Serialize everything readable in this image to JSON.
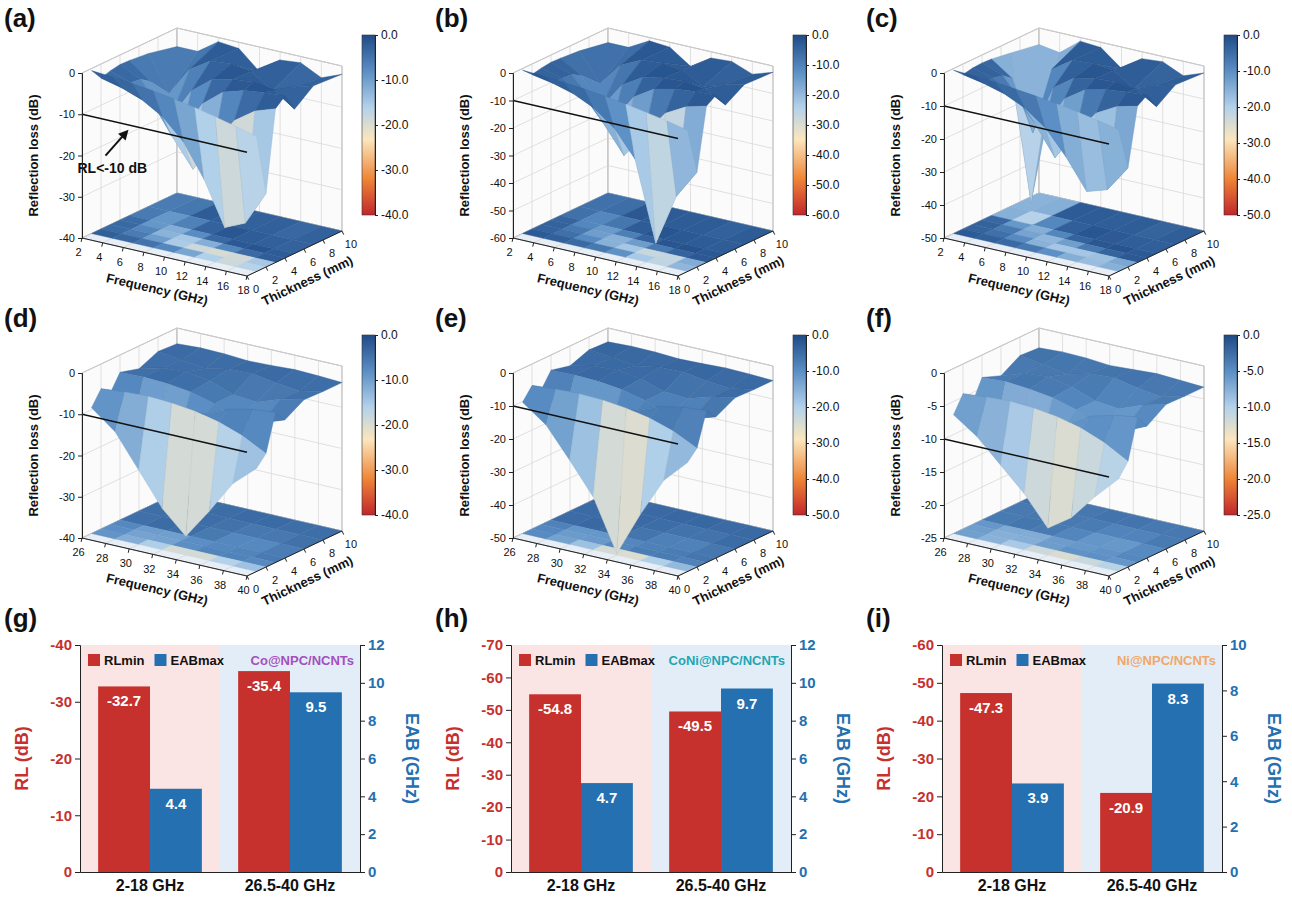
{
  "chart_data": [
    {
      "type": "surface",
      "panel": "(a)",
      "xlabel": "Frequency (GHz)",
      "ylabel": "Thickness (mm)",
      "zlabel": "Reflection loss (dB)",
      "x": [
        2,
        4,
        6,
        8,
        10,
        12,
        14,
        16,
        18
      ],
      "y": [
        1,
        2,
        3,
        4,
        5,
        7,
        10
      ],
      "z": [
        [
          -0.5,
          -0.9,
          -1.4,
          -2.0,
          -2.8,
          -3.7,
          -4.8,
          -6.0,
          -7.3
        ],
        [
          -3.4,
          -4.6,
          -6.4,
          -9.4,
          -14.3,
          -22.2,
          -32.7,
          -30.5,
          -22.2
        ],
        [
          -2.7,
          -4.4,
          -7.9,
          -15.3,
          -22.0,
          -15.3,
          -7.9,
          -4.4,
          -2.7
        ],
        [
          -2.3,
          -4.7,
          -11.1,
          -15.2,
          -7.2,
          -3.2,
          -1.7,
          -1.0,
          -0.7
        ],
        [
          -2.4,
          -6.3,
          -14.0,
          -6.3,
          -2.4,
          -1.2,
          -0.7,
          -1.5,
          -5.0
        ],
        [
          -2.9,
          -11.4,
          -4.4,
          -1.3,
          -0.8,
          -1.5,
          -5.0,
          -3.0,
          -1.5
        ],
        [
          -4.5,
          -4.5,
          -1.0,
          -1.5,
          -6.0,
          -2.0,
          -1.5,
          -4.0,
          -2.0
        ]
      ],
      "xlim": [
        2,
        18
      ],
      "xticks": [
        2,
        4,
        6,
        8,
        10,
        12,
        14,
        16,
        18
      ],
      "ylim": [
        0,
        10
      ],
      "yticks": [
        0,
        2,
        4,
        6,
        8,
        10
      ],
      "zlim": [
        -40,
        0
      ],
      "zticks": [
        0,
        -10,
        -20,
        -30,
        -40
      ],
      "colorbar": {
        "range": [
          -40,
          0
        ],
        "ticks": [
          {
            "value": 0,
            "label": "0.0"
          },
          {
            "value": -10,
            "label": "-10.0"
          },
          {
            "value": -20,
            "label": "-20.0"
          },
          {
            "value": -30,
            "label": "-30.0"
          },
          {
            "value": -40,
            "label": "-40.0"
          }
        ]
      },
      "threshold": -10,
      "annotation": "RL<-10 dB"
    },
    {
      "type": "surface",
      "panel": "(b)",
      "xlabel": "Frequency (GHz)",
      "ylabel": "Thickness (mm)",
      "zlabel": "Reflection loss (dB)",
      "x": [
        2,
        4,
        6,
        8,
        10,
        12,
        14,
        16,
        18
      ],
      "y": [
        1,
        2,
        3,
        4,
        5,
        7,
        10
      ],
      "z": [
        [
          -0.6,
          -1.0,
          -1.6,
          -2.3,
          -3.2,
          -4.3,
          -5.6,
          -7.0,
          -8.6
        ],
        [
          -3.8,
          -5.2,
          -7.3,
          -10.8,
          -16.5,
          -26.0,
          -54.8,
          -36.0,
          -25.5
        ],
        [
          -3.1,
          -5.1,
          -9.2,
          -18.0,
          -28.0,
          -18.5,
          -9.2,
          -5.1,
          -3.1
        ],
        [
          -2.6,
          -5.4,
          -13.0,
          -19.0,
          -8.4,
          -3.7,
          -2.0,
          -1.2,
          -0.8
        ],
        [
          -2.8,
          -7.3,
          -17.0,
          -7.3,
          -2.8,
          -1.4,
          -0.8,
          -1.8,
          -6.0
        ],
        [
          -3.4,
          -13.5,
          -5.1,
          -1.5,
          -0.9,
          -1.8,
          -6.0,
          -3.5,
          -1.8
        ],
        [
          -5.3,
          -5.3,
          -1.2,
          -1.8,
          -7.0,
          -2.3,
          -1.8,
          -4.7,
          -2.3
        ]
      ],
      "xlim": [
        2,
        18
      ],
      "xticks": [
        2,
        4,
        6,
        8,
        10,
        12,
        14,
        16,
        18
      ],
      "ylim": [
        0,
        10
      ],
      "yticks": [
        0,
        2,
        4,
        6,
        8,
        10
      ],
      "zlim": [
        -60,
        0
      ],
      "zticks": [
        0,
        -10,
        -20,
        -30,
        -40,
        -50,
        -60
      ],
      "colorbar": {
        "range": [
          -60,
          0
        ],
        "ticks": [
          {
            "value": 0,
            "label": "0.0"
          },
          {
            "value": -10,
            "label": "-10.0"
          },
          {
            "value": -20,
            "label": "-20.0"
          },
          {
            "value": -30,
            "label": "-30.0"
          },
          {
            "value": -40,
            "label": "-40.0"
          },
          {
            "value": -50,
            "label": "-50.0"
          },
          {
            "value": -60,
            "label": "-60.0"
          }
        ]
      },
      "threshold": -10
    },
    {
      "type": "surface",
      "panel": "(c)",
      "xlabel": "Frequency (GHz)",
      "ylabel": "Thickness (mm)",
      "zlabel": "Reflection loss (dB)",
      "x": [
        2,
        4,
        6,
        8,
        10,
        12,
        14,
        16,
        18
      ],
      "y": [
        1,
        2,
        3,
        4,
        5,
        7,
        10
      ],
      "z": [
        [
          -0.5,
          -0.8,
          -1.3,
          -1.9,
          -2.6,
          -3.5,
          -4.5,
          -5.7,
          -7.0
        ],
        [
          -3.2,
          -4.4,
          -6.1,
          -9.0,
          -13.6,
          -21.0,
          -30.0,
          -28.0,
          -20.0
        ],
        [
          -2.6,
          -4.2,
          -7.6,
          -14.8,
          -24.0,
          -15.0,
          -7.6,
          -4.2,
          -2.6
        ],
        [
          -2.4,
          -4.8,
          -12.0,
          -18.0,
          -7.5,
          -3.3,
          -1.8,
          -1.1,
          -0.7
        ],
        [
          -2.6,
          -7.0,
          -22.0,
          -7.0,
          -2.6,
          -1.3,
          -0.8,
          -1.6,
          -5.5
        ],
        [
          -3.5,
          -47.3,
          -5.5,
          -1.4,
          -0.9,
          -1.6,
          -5.5,
          -3.2,
          -1.6
        ],
        [
          -5.0,
          -6.0,
          -1.1,
          -1.6,
          -6.5,
          -2.1,
          -1.6,
          -4.4,
          -2.1
        ]
      ],
      "xlim": [
        2,
        18
      ],
      "xticks": [
        2,
        4,
        6,
        8,
        10,
        12,
        14,
        16,
        18
      ],
      "ylim": [
        0,
        10
      ],
      "yticks": [
        0,
        2,
        4,
        6,
        8,
        10
      ],
      "zlim": [
        -50,
        0
      ],
      "zticks": [
        0,
        -10,
        -20,
        -30,
        -40,
        -50
      ],
      "colorbar": {
        "range": [
          -50,
          0
        ],
        "ticks": [
          {
            "value": 0,
            "label": "0.0"
          },
          {
            "value": -10,
            "label": "-10.0"
          },
          {
            "value": -20,
            "label": "-20.0"
          },
          {
            "value": -30,
            "label": "-30.0"
          },
          {
            "value": -40,
            "label": "-40.0"
          },
          {
            "value": -50,
            "label": "-50.0"
          }
        ]
      },
      "threshold": -10
    },
    {
      "type": "surface",
      "panel": "(d)",
      "xlabel": "Frequency (GHz)",
      "ylabel": "Thickness (mm)",
      "zlabel": "Reflection loss (dB)",
      "x": [
        26,
        28,
        30,
        32,
        34,
        36,
        38,
        40
      ],
      "y": [
        1,
        2,
        3,
        4,
        6,
        8,
        10
      ],
      "z": [
        [
          -9.5,
          -14.0,
          -22.0,
          -30.0,
          -35.4,
          -28.0,
          -20.0,
          -15.0
        ],
        [
          -6.0,
          -5.5,
          -5.2,
          -5.5,
          -6.2,
          -7.5,
          -9.5,
          -12.5
        ],
        [
          -8.0,
          -13.0,
          -18.0,
          -12.5,
          -8.0,
          -5.5,
          -4.2,
          -3.6
        ],
        [
          -4.2,
          -4.0,
          -4.3,
          -5.0,
          -6.5,
          -9.0,
          -8.5,
          -6.5
        ],
        [
          -5.5,
          -4.0,
          -3.6,
          -4.5,
          -6.5,
          -7.0,
          -5.0,
          -3.8
        ],
        [
          -3.5,
          -4.2,
          -5.0,
          -3.8,
          -3.6,
          -4.5,
          -5.2,
          -4.0
        ],
        [
          -3.8,
          -3.5,
          -3.6,
          -4.0,
          -3.8,
          -3.5,
          -3.7,
          -4.0
        ]
      ],
      "xlim": [
        26,
        40
      ],
      "xticks": [
        26,
        28,
        30,
        32,
        34,
        36,
        38,
        40
      ],
      "ylim": [
        0,
        10
      ],
      "yticks": [
        0,
        2,
        4,
        6,
        8,
        10
      ],
      "zlim": [
        -40,
        0
      ],
      "zticks": [
        0,
        -10,
        -20,
        -30,
        -40
      ],
      "colorbar": {
        "range": [
          -40,
          0
        ],
        "ticks": [
          {
            "value": 0,
            "label": "0.0"
          },
          {
            "value": -10,
            "label": "-10.0"
          },
          {
            "value": -20,
            "label": "-20.0"
          },
          {
            "value": -30,
            "label": "-30.0"
          },
          {
            "value": -40,
            "label": "-40.0"
          }
        ]
      },
      "threshold": -10
    },
    {
      "type": "surface",
      "panel": "(e)",
      "xlabel": "Frequency (GHz)",
      "ylabel": "Thickness (mm)",
      "zlabel": "Reflection loss (dB)",
      "x": [
        26,
        28,
        30,
        32,
        34,
        36,
        38,
        40
      ],
      "y": [
        1,
        2,
        3,
        4,
        6,
        8,
        10
      ],
      "z": [
        [
          -10.2,
          -15.5,
          -24.5,
          -34.0,
          -49.5,
          -36.0,
          -24.0,
          -17.0
        ],
        [
          -6.5,
          -6.0,
          -5.7,
          -6.0,
          -6.8,
          -8.2,
          -10.5,
          -14.0
        ],
        [
          -9.0,
          -15.0,
          -21.0,
          -14.0,
          -9.0,
          -6.0,
          -4.6,
          -4.0
        ],
        [
          -4.6,
          -4.4,
          -4.7,
          -5.5,
          -7.2,
          -10.0,
          -9.4,
          -7.2
        ],
        [
          -6.0,
          -4.4,
          -4.0,
          -5.0,
          -7.2,
          -7.7,
          -5.5,
          -4.2
        ],
        [
          -3.9,
          -4.6,
          -5.5,
          -4.2,
          -4.0,
          -5.0,
          -5.7,
          -4.4
        ],
        [
          -4.2,
          -3.9,
          -4.0,
          -4.4,
          -4.2,
          -3.9,
          -4.1,
          -4.4
        ]
      ],
      "xlim": [
        26,
        40
      ],
      "xticks": [
        26,
        28,
        30,
        32,
        34,
        36,
        38,
        40
      ],
      "ylim": [
        0,
        10
      ],
      "yticks": [
        0,
        2,
        4,
        6,
        8,
        10
      ],
      "zlim": [
        -50,
        0
      ],
      "zticks": [
        0,
        -10,
        -20,
        -30,
        -40,
        -50
      ],
      "colorbar": {
        "range": [
          -50,
          0
        ],
        "ticks": [
          {
            "value": 0,
            "label": "0.0"
          },
          {
            "value": -10,
            "label": "-10.0"
          },
          {
            "value": -20,
            "label": "-20.0"
          },
          {
            "value": -30,
            "label": "-30.0"
          },
          {
            "value": -40,
            "label": "-40.0"
          },
          {
            "value": -50,
            "label": "-50.0"
          }
        ]
      },
      "threshold": -10
    },
    {
      "type": "surface",
      "panel": "(f)",
      "xlabel": "Frequency (GHz)",
      "ylabel": "Thickness (mm)",
      "zlabel": "Reflection loss (dB)",
      "x": [
        26,
        28,
        30,
        32,
        34,
        36,
        38,
        40
      ],
      "y": [
        1,
        2,
        3,
        4,
        6,
        8,
        10
      ],
      "z": [
        [
          -7.0,
          -9.5,
          -13.0,
          -16.5,
          -20.9,
          -18.5,
          -14.5,
          -11.0
        ],
        [
          -4.5,
          -4.2,
          -4.0,
          -4.2,
          -4.7,
          -5.6,
          -7.0,
          -9.0
        ],
        [
          -6.5,
          -9.5,
          -12.5,
          -9.0,
          -6.5,
          -4.5,
          -3.5,
          -3.0
        ],
        [
          -3.4,
          -3.2,
          -3.5,
          -4.0,
          -5.0,
          -7.0,
          -6.6,
          -5.0
        ],
        [
          -4.5,
          -3.3,
          -3.0,
          -3.7,
          -5.0,
          -5.4,
          -4.0,
          -3.1
        ],
        [
          -2.8,
          -3.3,
          -4.0,
          -3.1,
          -2.9,
          -3.6,
          -4.1,
          -3.2
        ],
        [
          -3.0,
          -2.8,
          -2.9,
          -3.2,
          -3.0,
          -2.8,
          -3.0,
          -3.2
        ]
      ],
      "xlim": [
        26,
        40
      ],
      "xticks": [
        26,
        28,
        30,
        32,
        34,
        36,
        38,
        40
      ],
      "ylim": [
        0,
        10
      ],
      "yticks": [
        0,
        2,
        4,
        6,
        8,
        10
      ],
      "zlim": [
        -25,
        0
      ],
      "zticks": [
        0,
        -5,
        -10,
        -15,
        -20,
        -25
      ],
      "colorbar": {
        "range": [
          -25,
          0
        ],
        "ticks": [
          {
            "value": 0,
            "label": "0.0"
          },
          {
            "value": -5,
            "label": "-5.0"
          },
          {
            "value": -10,
            "label": "-10.0"
          },
          {
            "value": -15,
            "label": "-15.0"
          },
          {
            "value": -20,
            "label": "-20.0"
          },
          {
            "value": -25,
            "label": "-25.0"
          }
        ]
      },
      "threshold": -10
    },
    {
      "type": "bar",
      "panel": "(g)",
      "title": "Co@NPC/NCNTs",
      "ylabel": "RL (dB)",
      "y2label": "EAB (GHz)",
      "categories": [
        "2-18 GHz",
        "26.5-40 GHz"
      ],
      "series": [
        {
          "name": "RLmin",
          "color": "#c6302d",
          "values": [
            -32.7,
            -35.4
          ]
        },
        {
          "name": "EABmax",
          "color": "#2470b0",
          "values": [
            4.4,
            9.5
          ],
          "axis": "y2"
        }
      ],
      "ylim": [
        0,
        -40
      ],
      "yticks": [
        0,
        -10,
        -20,
        -30,
        -40
      ],
      "y2lim": [
        0,
        12
      ],
      "y2ticks": [
        0,
        2,
        4,
        6,
        8,
        10,
        12
      ],
      "data_labels": true,
      "legend": "top-left"
    },
    {
      "type": "bar",
      "panel": "(h)",
      "title": "CoNi@NPC/NCNTs",
      "ylabel": "RL (dB)",
      "y2label": "EAB (GHz)",
      "categories": [
        "2-18 GHz",
        "26.5-40 GHz"
      ],
      "series": [
        {
          "name": "RLmin",
          "color": "#c6302d",
          "values": [
            -54.8,
            -49.5
          ]
        },
        {
          "name": "EABmax",
          "color": "#2470b0",
          "values": [
            4.7,
            9.7
          ],
          "axis": "y2"
        }
      ],
      "ylim": [
        0,
        -70
      ],
      "yticks": [
        0,
        -10,
        -20,
        -30,
        -40,
        -50,
        -60,
        -70
      ],
      "y2lim": [
        0,
        12
      ],
      "y2ticks": [
        0,
        2,
        4,
        6,
        8,
        10,
        12
      ],
      "data_labels": true,
      "legend": "top-left"
    },
    {
      "type": "bar",
      "panel": "(i)",
      "title": "Ni@NPC/NCNTs",
      "ylabel": "RL (dB)",
      "y2label": "EAB (GHz)",
      "categories": [
        "2-18 GHz",
        "26.5-40 GHz"
      ],
      "series": [
        {
          "name": "RLmin",
          "color": "#c6302d",
          "values": [
            -47.3,
            -20.9
          ]
        },
        {
          "name": "EABmax",
          "color": "#2470b0",
          "values": [
            3.9,
            8.3
          ],
          "axis": "y2"
        }
      ],
      "ylim": [
        0,
        -60
      ],
      "yticks": [
        0,
        -10,
        -20,
        -30,
        -40,
        -50,
        -60
      ],
      "y2lim": [
        0,
        10
      ],
      "y2ticks": [
        0,
        2,
        4,
        6,
        8,
        10
      ],
      "data_labels": true,
      "legend": "top-left"
    }
  ]
}
